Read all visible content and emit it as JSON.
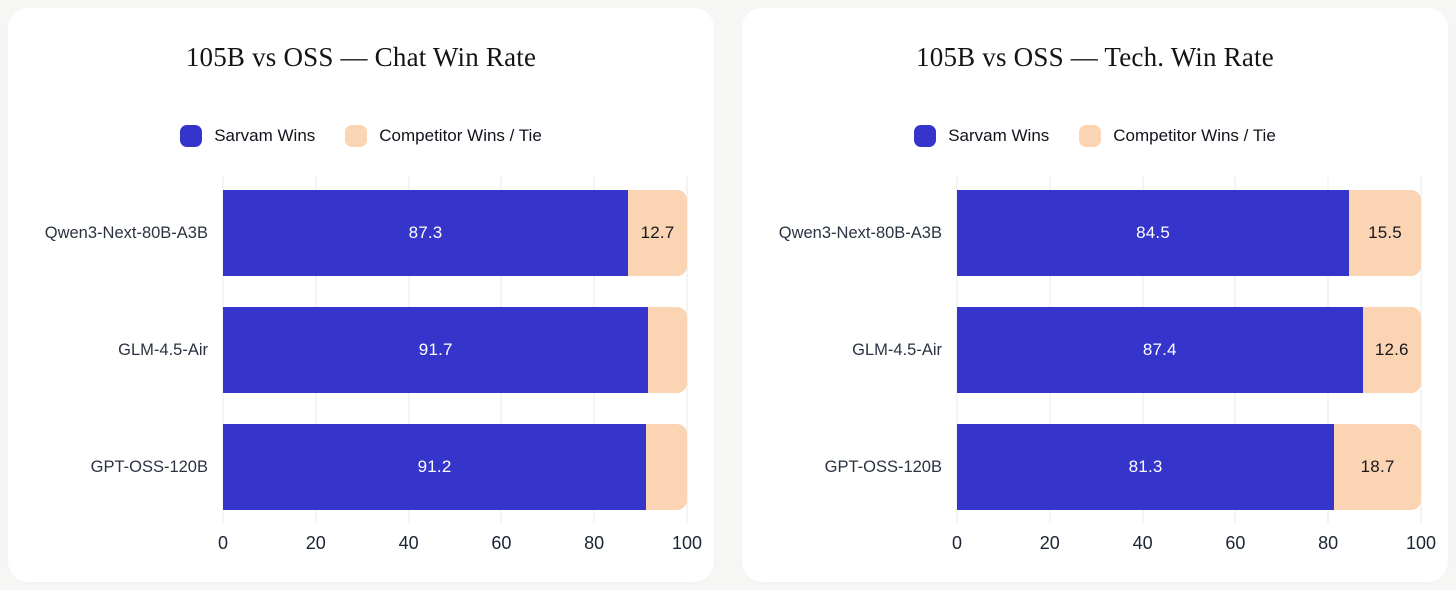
{
  "colors": {
    "page_background": "#f6f6f4",
    "card_background": "#ffffff",
    "sarvam": "#3534cb",
    "competitor": "#fbd5b3",
    "gridline": "#e8e8e8",
    "title_text": "#141414",
    "category_text": "#2b3342",
    "tick_text": "#1c2433",
    "value_on_sarvam": "#ffffff",
    "value_on_competitor": "#17171c"
  },
  "chart_data": [
    {
      "type": "bar",
      "orientation": "horizontal",
      "stacked": true,
      "title": "105B vs OSS — Chat Win Rate",
      "legend": [
        {
          "label": "Sarvam Wins",
          "color_key": "sarvam"
        },
        {
          "label": "Competitor Wins / Tie",
          "color_key": "competitor"
        }
      ],
      "legend_position": "top-center",
      "grid": true,
      "categories": [
        "Qwen3-Next-80B-A3B",
        "GLM-4.5-Air",
        "GPT-OSS-120B"
      ],
      "series": [
        {
          "name": "Sarvam Wins",
          "color_key": "sarvam",
          "values": [
            87.3,
            91.7,
            91.2
          ],
          "labels": [
            "87.3",
            "91.7",
            "91.2"
          ]
        },
        {
          "name": "Competitor Wins / Tie",
          "color_key": "competitor",
          "values": [
            12.7,
            8.3,
            8.8
          ],
          "labels": [
            "12.7",
            "",
            ""
          ]
        }
      ],
      "xlim": [
        0,
        100
      ],
      "x_ticks": [
        "0",
        "20",
        "40",
        "60",
        "80",
        "100"
      ]
    },
    {
      "type": "bar",
      "orientation": "horizontal",
      "stacked": true,
      "title": "105B vs OSS — Tech. Win Rate",
      "legend": [
        {
          "label": "Sarvam Wins",
          "color_key": "sarvam"
        },
        {
          "label": "Competitor Wins / Tie",
          "color_key": "competitor"
        }
      ],
      "legend_position": "top-center",
      "grid": true,
      "categories": [
        "Qwen3-Next-80B-A3B",
        "GLM-4.5-Air",
        "GPT-OSS-120B"
      ],
      "series": [
        {
          "name": "Sarvam Wins",
          "color_key": "sarvam",
          "values": [
            84.5,
            87.4,
            81.3
          ],
          "labels": [
            "84.5",
            "87.4",
            "81.3"
          ]
        },
        {
          "name": "Competitor Wins / Tie",
          "color_key": "competitor",
          "values": [
            15.5,
            12.6,
            18.7
          ],
          "labels": [
            "15.5",
            "12.6",
            "18.7"
          ]
        }
      ],
      "xlim": [
        0,
        100
      ],
      "x_ticks": [
        "0",
        "20",
        "40",
        "60",
        "80",
        "100"
      ]
    }
  ]
}
